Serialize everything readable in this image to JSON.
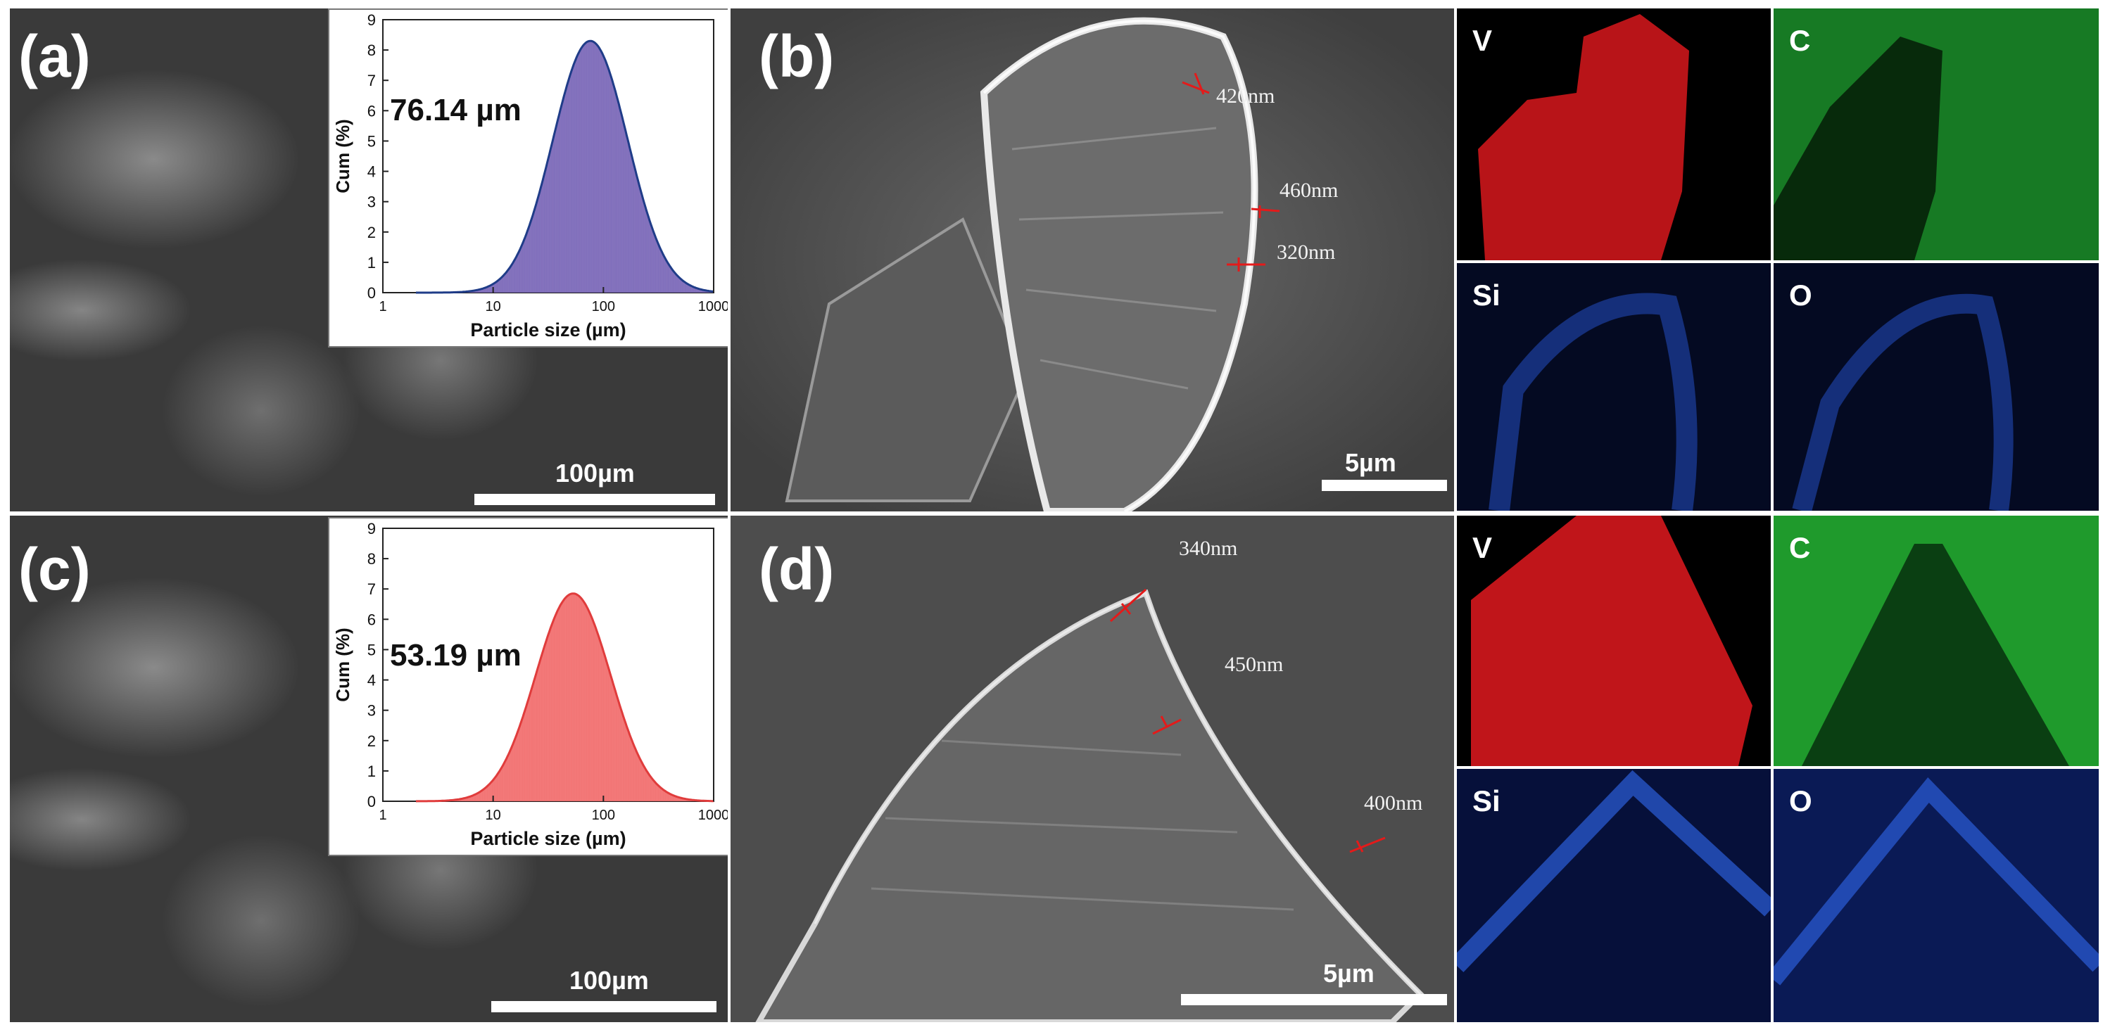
{
  "panels": {
    "a": {
      "letter": "(a)",
      "scale": "100µm"
    },
    "b": {
      "letter": "(b)",
      "scale": "5µm",
      "thickness": [
        "420nm",
        "460nm",
        "320nm"
      ]
    },
    "c": {
      "letter": "(c)",
      "scale": "100µm"
    },
    "d": {
      "letter": "(d)",
      "scale": "5µm",
      "thickness": [
        "340nm",
        "450nm",
        "400nm"
      ]
    }
  },
  "eds_maps": {
    "top": [
      "V",
      "C",
      "Si",
      "O"
    ],
    "bottom": [
      "V",
      "C",
      "Si",
      "O"
    ]
  },
  "colors": {
    "V": "#c0151a",
    "C": "#1f9a2c",
    "Si": "#1d3fa0",
    "O": "#1d3fa0",
    "measure": "#e41a1a"
  },
  "chart_data": [
    {
      "type": "bar",
      "panel": "a",
      "annotation": "76.14 µm",
      "xlabel": "Particle size (µm)",
      "ylabel": "Cum (%)",
      "xscale": "log",
      "xlim": [
        1,
        1000
      ],
      "ylim": [
        0,
        9
      ],
      "xticks": [
        "1",
        "10",
        "100",
        "1000"
      ],
      "yticks": [
        "0",
        "1",
        "2",
        "3",
        "4",
        "5",
        "6",
        "7",
        "8",
        "9"
      ],
      "peak_x": 76.14,
      "peak_y": 8.3,
      "color": "#7a67b8",
      "line_color": "#1f3c88"
    },
    {
      "type": "bar",
      "panel": "c",
      "annotation": "53.19 µm",
      "xlabel": "Particle size (µm)",
      "ylabel": "Cum (%)",
      "xscale": "log",
      "xlim": [
        1,
        1000
      ],
      "ylim": [
        0,
        9
      ],
      "xticks": [
        "1",
        "10",
        "100",
        "1000"
      ],
      "yticks": [
        "0",
        "1",
        "2",
        "3",
        "4",
        "5",
        "6",
        "7",
        "8",
        "9"
      ],
      "peak_x": 53.19,
      "peak_y": 6.85,
      "color": "#f26d6d",
      "line_color": "#e03c3c"
    }
  ]
}
